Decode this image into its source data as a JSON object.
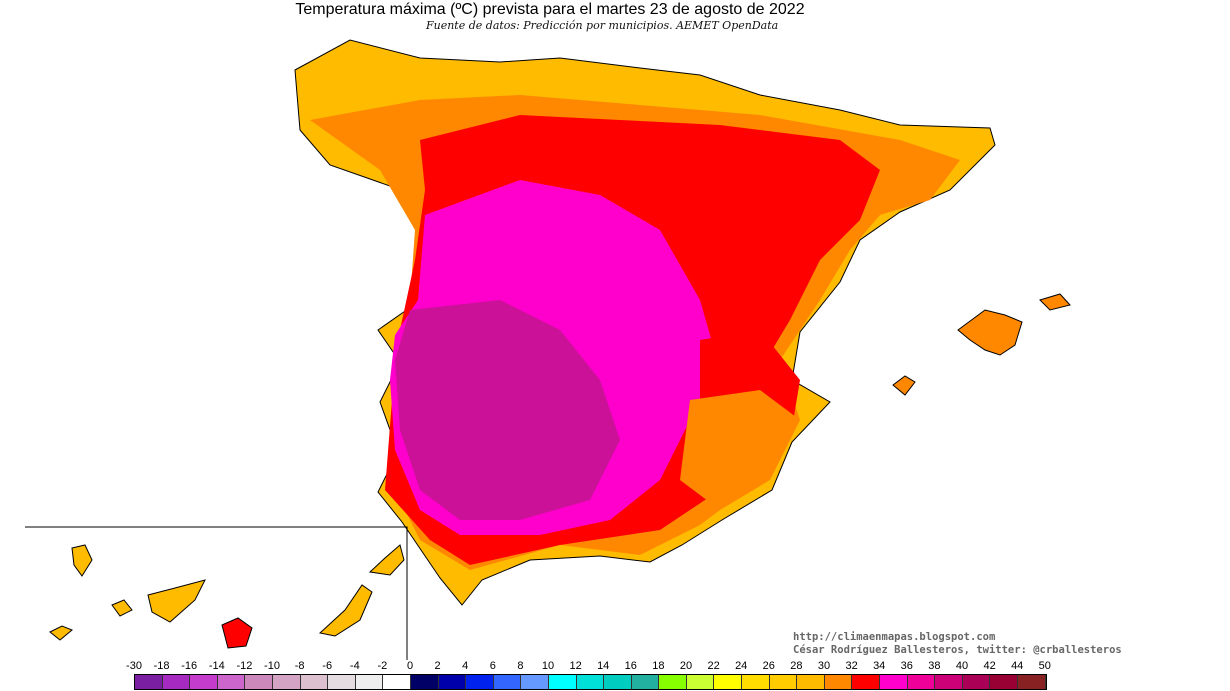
{
  "title": "Temperatura máxima (ºC) prevista para el martes 23 de agosto de 2022",
  "subtitle": "Fuente de datos: Predicción por municipios. AEMET OpenData",
  "credits": {
    "url": "http://climaenmapas.blogspot.com",
    "author": "César Rodríguez Ballesteros, twitter: @crballesteros"
  },
  "legend": {
    "ticks": [
      "-30",
      "-18",
      "-16",
      "-14",
      "-12",
      "-10",
      "-8",
      "-6",
      "-4",
      "-2",
      "0",
      "2",
      "4",
      "6",
      "8",
      "10",
      "12",
      "14",
      "16",
      "18",
      "20",
      "22",
      "24",
      "26",
      "28",
      "30",
      "32",
      "34",
      "36",
      "38",
      "40",
      "42",
      "44",
      "50"
    ],
    "colors": [
      "#7a1fa2",
      "#a629c0",
      "#c43ccc",
      "#cc66cc",
      "#cc88bb",
      "#d4a4c4",
      "#dcc0d0",
      "#e4dce0",
      "#eeeeee",
      "#ffffff",
      "#000066",
      "#0000aa",
      "#0022ee",
      "#3366ff",
      "#6699ff",
      "#00ffff",
      "#00e0d8",
      "#00ccc0",
      "#22b0a0",
      "#88ff00",
      "#ccff33",
      "#ffff00",
      "#ffdd00",
      "#ffcc00",
      "#ffbb00",
      "#ff8800",
      "#ff0000",
      "#ff00cc",
      "#ee0099",
      "#cc0077",
      "#aa0055",
      "#990033",
      "#882222"
    ]
  },
  "map_colors": {
    "coast_yellow": "#ffcc00",
    "orange": "#ff9900",
    "red": "#ff0000",
    "magenta": "#ff00cc",
    "dark_magenta": "#cc1199"
  }
}
